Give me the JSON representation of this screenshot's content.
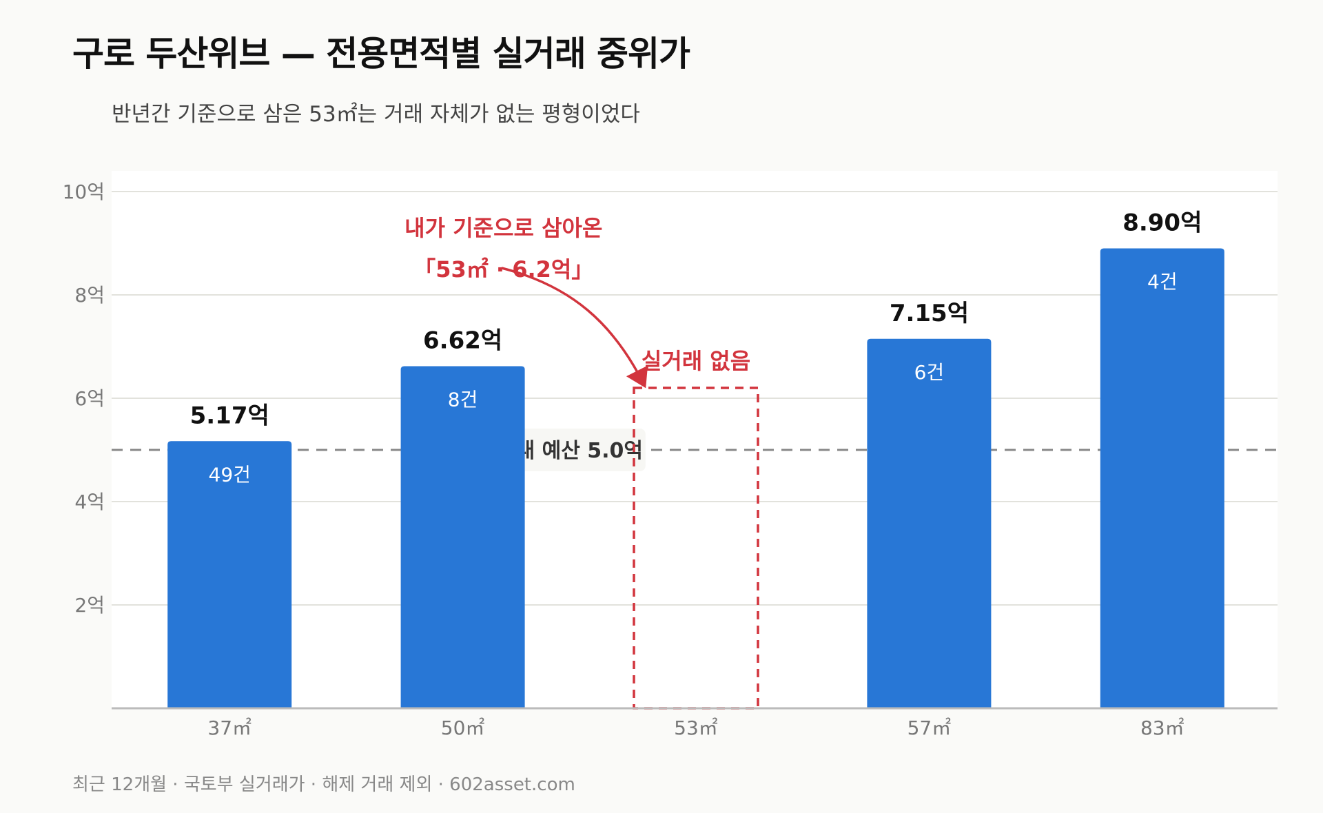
{
  "title": "구로 두산위브 — 전용면적별 실거래 중위가",
  "subtitle": "반년간 기준으로 삼은 53㎡는 거래 자체가 없는 평형이었다",
  "source": "최근 12개월 · 국토부 실거래가 · 해제 거래 제외 · 602asset.com",
  "chart_data": {
    "type": "bar",
    "categories": [
      "37㎡",
      "50㎡",
      "53㎡",
      "57㎡",
      "83㎡"
    ],
    "values": [
      5.17,
      6.62,
      null,
      7.15,
      8.9
    ],
    "value_labels": [
      "5.17억",
      "6.62억",
      "",
      "7.15억",
      "8.90억"
    ],
    "counts": [
      "49건",
      "8건",
      "",
      "6건",
      "4건"
    ],
    "ylim": [
      0,
      10
    ],
    "yticks": [
      2,
      4,
      6,
      8,
      10
    ],
    "ytick_labels": [
      "2억",
      "4억",
      "6억",
      "8억",
      "10억"
    ],
    "grid": true,
    "bar_color": "#2877d6",
    "reference_line": {
      "value": 5.0,
      "label": "내 예산 5.0억",
      "color": "#888888"
    },
    "highlight": {
      "category": "53㎡",
      "value": 6.2,
      "label": "실거래 없음",
      "note_lines": [
        "내가 기준으로 삼아온",
        "「53㎡ · 6.2억」"
      ],
      "color": "#d2343d"
    }
  }
}
